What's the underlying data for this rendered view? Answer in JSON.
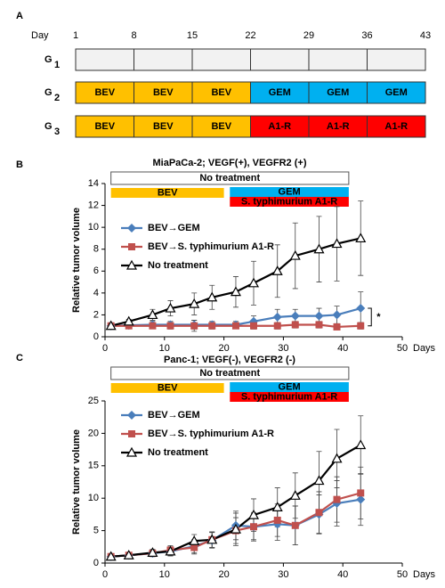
{
  "schedule": {
    "label": "A",
    "day_label": "Day",
    "days": [
      1,
      8,
      15,
      22,
      29,
      36,
      43
    ],
    "colors": {
      "BEV": "#ffc000",
      "GEM": "#00b0f0",
      "A1-R": "#ff0000"
    },
    "rows": [
      {
        "name": "G",
        "subscript": "1"
      },
      {
        "name": "G",
        "subscript": "2",
        "cells": [
          "BEV",
          "BEV",
          "BEV",
          "GEM",
          "GEM",
          "GEM"
        ]
      },
      {
        "name": "G",
        "subscript": "3",
        "cells": [
          "BEV",
          "BEV",
          "BEV",
          "A1-R",
          "A1-R",
          "A1-R"
        ]
      }
    ]
  },
  "chart_data": [
    {
      "type": "line",
      "label": "B",
      "title": "MiaPaCa-2; VEGF(+), VEGFR2 (+)",
      "xlabel": "Days",
      "ylabel": "Relative tumor volume",
      "xlim": [
        0,
        50
      ],
      "xticks": [
        0,
        10,
        20,
        30,
        40,
        50
      ],
      "ylim": [
        0,
        14
      ],
      "yticks": [
        0,
        2,
        4,
        6,
        8,
        10,
        12,
        14
      ],
      "treatments": [
        {
          "name": "No treatment",
          "start": 1,
          "end": 41,
          "color": "#ffffff"
        },
        {
          "name": "BEV",
          "start": 1,
          "end": 20,
          "color": "#ffc000"
        },
        {
          "name": "GEM",
          "start": 21,
          "end": 41,
          "color": "#00b0f0"
        },
        {
          "name": "S. typhimurium A1-R",
          "start": 21,
          "end": 41,
          "color": "#ff0000"
        }
      ],
      "annotation": "*",
      "x": [
        1,
        4,
        8,
        11,
        15,
        18,
        22,
        25,
        29,
        32,
        36,
        39,
        43
      ],
      "series": [
        {
          "name": "BEV→GEM",
          "color": "#4a7ebb",
          "marker": "diamond",
          "values": [
            1,
            1.05,
            1.1,
            1.1,
            1.1,
            1.1,
            1.1,
            1.4,
            1.8,
            1.9,
            1.9,
            2.0,
            2.6
          ],
          "errors": [
            0.1,
            0.2,
            0.3,
            0.3,
            0.4,
            0.3,
            0.3,
            0.5,
            0.7,
            0.6,
            0.7,
            0.8,
            1.5
          ]
        },
        {
          "name": "BEV→S. typhimurium A1-R",
          "color": "#c0504d",
          "marker": "square",
          "values": [
            1,
            1.0,
            1.0,
            1.0,
            1.0,
            1.0,
            1.0,
            1.0,
            1.0,
            1.1,
            1.1,
            0.9,
            1.0
          ],
          "errors": [
            0.1,
            0.1,
            0.2,
            0.3,
            0.5,
            0.3,
            0.2,
            0.3,
            0.3,
            0.3,
            0.3,
            0.2,
            0.3
          ]
        },
        {
          "name": "No treatment",
          "color": "#000000",
          "marker": "triangle",
          "values": [
            1,
            1.4,
            2.0,
            2.6,
            3.0,
            3.6,
            4.1,
            4.9,
            6.0,
            7.4,
            8.0,
            8.5,
            9.0
          ],
          "errors": [
            0.1,
            0.2,
            0.5,
            0.7,
            1.0,
            1.1,
            1.4,
            2.0,
            2.4,
            3.0,
            3.0,
            3.4,
            3.4
          ]
        }
      ]
    },
    {
      "type": "line",
      "label": "C",
      "title": "Panc-1; VEGF(-), VEGFR2 (-)",
      "xlabel": "Days",
      "ylabel": "Relative tumor volume",
      "xlim": [
        0,
        50
      ],
      "xticks": [
        0,
        10,
        20,
        30,
        40,
        50
      ],
      "ylim": [
        0,
        25
      ],
      "yticks": [
        0,
        5,
        10,
        15,
        20,
        25
      ],
      "treatments": [
        {
          "name": "No treatment",
          "start": 1,
          "end": 41,
          "color": "#ffffff"
        },
        {
          "name": "BEV",
          "start": 1,
          "end": 20,
          "color": "#ffc000"
        },
        {
          "name": "GEM",
          "start": 21,
          "end": 41,
          "color": "#00b0f0"
        },
        {
          "name": "S. typhimurium A1-R",
          "start": 21,
          "end": 41,
          "color": "#ff0000"
        }
      ],
      "x": [
        1,
        4,
        8,
        11,
        15,
        18,
        22,
        25,
        29,
        32,
        36,
        39,
        43
      ],
      "series": [
        {
          "name": "BEV→GEM",
          "color": "#4a7ebb",
          "marker": "diamond",
          "values": [
            1,
            1.2,
            1.5,
            1.8,
            2.6,
            3.5,
            5.8,
            5.6,
            6.0,
            5.8,
            7.5,
            9.2,
            9.8
          ],
          "errors": [
            0.2,
            0.3,
            0.5,
            0.7,
            1.0,
            1.2,
            2.2,
            2.0,
            2.5,
            3.0,
            3.0,
            3.5,
            4.0
          ]
        },
        {
          "name": "BEV→S. typhimurium A1-R",
          "color": "#c0504d",
          "marker": "square",
          "values": [
            1,
            1.2,
            1.5,
            2.0,
            2.4,
            3.6,
            5.0,
            5.6,
            6.6,
            5.8,
            7.8,
            9.8,
            10.8
          ],
          "errors": [
            0.2,
            0.3,
            0.5,
            0.7,
            1.0,
            1.2,
            2.0,
            2.2,
            2.5,
            3.0,
            3.2,
            3.5,
            4.0
          ]
        },
        {
          "name": "No treatment",
          "color": "#000000",
          "marker": "triangle",
          "values": [
            1,
            1.2,
            1.6,
            1.8,
            3.4,
            3.6,
            5.2,
            7.4,
            8.6,
            10.4,
            12.7,
            16.1,
            18.2
          ],
          "errors": [
            0.2,
            0.3,
            0.5,
            0.7,
            1.0,
            1.2,
            2.5,
            2.5,
            3.0,
            3.5,
            4.5,
            4.5,
            4.5
          ]
        }
      ]
    }
  ]
}
